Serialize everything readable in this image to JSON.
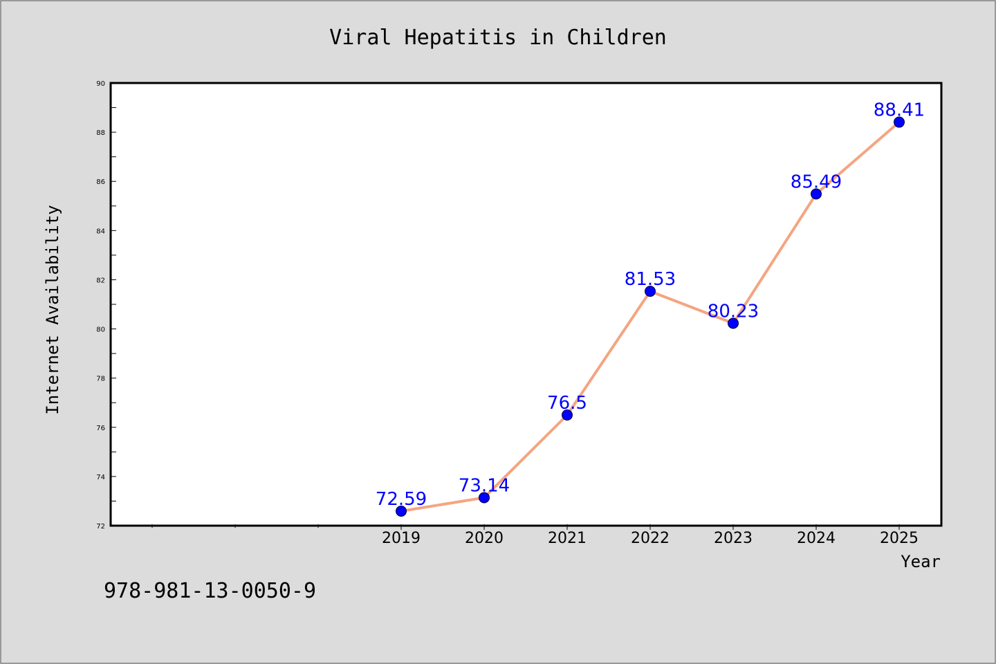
{
  "chart_data": {
    "type": "line",
    "title": "Viral Hepatitis in Children",
    "xlabel": "Year",
    "ylabel": "Internet Availability",
    "categories": [
      "2019",
      "2020",
      "2021",
      "2022",
      "2023",
      "2024",
      "2025"
    ],
    "values": [
      72.59,
      73.14,
      76.5,
      81.53,
      80.23,
      85.49,
      88.41
    ],
    "data_labels": [
      "72.59",
      "73.14",
      "76.5",
      "81.53",
      "80.23",
      "85.49",
      "88.41"
    ],
    "ylim": [
      72,
      90
    ],
    "yticks": [
      "72",
      "74",
      "76",
      "78",
      "80",
      "82",
      "84",
      "86",
      "88",
      "90"
    ],
    "grid": false,
    "legend": "none",
    "colors": {
      "line": "#f4a582",
      "marker": "#0000ff",
      "label": "#0000ff",
      "background": "#dcdcdc",
      "plot_area": "#ffffff"
    }
  },
  "footer": {
    "code": "978-981-13-0050-9"
  }
}
